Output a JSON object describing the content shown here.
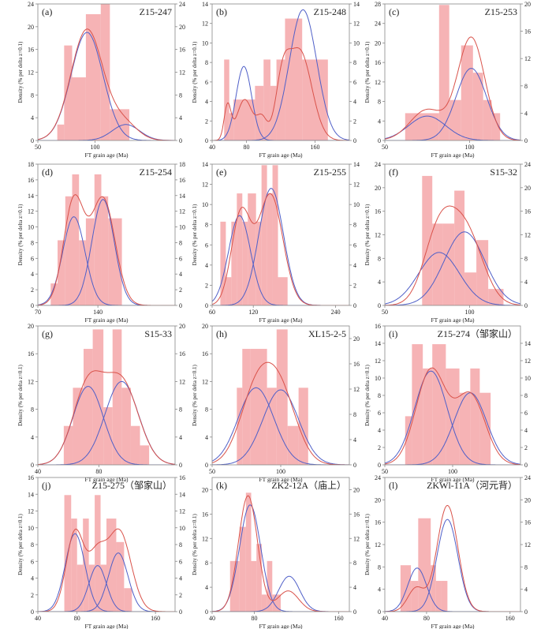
{
  "figure": {
    "title": "FT grain age histograms with decomposed peak components",
    "colors": {
      "bar": "#f4a6a8",
      "bar_opacity": "0.85",
      "frame": "#888888",
      "pdp_curve": "#d9524a",
      "component_curve": "#4f5fc8",
      "text": "#222222"
    }
  },
  "chart_data": [
    {
      "type": "bar",
      "panel": "(a)",
      "sample": "Z15-247",
      "xlabel": "FT grain age (Ma)",
      "ylabel": "Density (% per delta z=0.1)",
      "xlim": [
        50,
        170
      ],
      "xticks": [
        50,
        100
      ],
      "ylim": [
        0,
        24
      ],
      "yticks": [
        0,
        4,
        8,
        12,
        16,
        20,
        24
      ],
      "ylim_right": [
        0,
        24
      ],
      "yticks_right": [
        0,
        4,
        8,
        12,
        16,
        20,
        24
      ],
      "bins": [
        [
          67,
          73,
          2.8
        ],
        [
          73,
          80,
          16.7
        ],
        [
          80,
          92,
          11.1
        ],
        [
          92,
          105,
          22.2
        ],
        [
          105,
          113,
          24.8
        ],
        [
          113,
          130,
          5.5
        ]
      ],
      "pdp": {
        "components": [
          [
            93,
            14,
            19.5
          ],
          [
            125,
            12,
            3
          ]
        ]
      },
      "components": [
        [
          93,
          14,
          19
        ],
        [
          127,
          12,
          2.8
        ]
      ]
    },
    {
      "type": "bar",
      "panel": "(b)",
      "sample": "Z15-248",
      "xlabel": "FT grain age (Ma)",
      "ylabel": "Density (% per delta z=0.1)",
      "xlim": [
        40,
        200
      ],
      "xticks": [
        40,
        80,
        160
      ],
      "ylim": [
        0,
        14
      ],
      "yticks": [
        0,
        2,
        4,
        6,
        8,
        10,
        12,
        14
      ],
      "ylim_right": [
        0,
        14
      ],
      "yticks_right": [
        0,
        2,
        4,
        6,
        8,
        10,
        12,
        14
      ],
      "bins": [
        [
          54,
          60,
          8.3
        ],
        [
          60,
          65,
          2.8
        ],
        [
          65,
          90,
          4.2
        ],
        [
          90,
          100,
          5.6
        ],
        [
          100,
          108,
          8.3
        ],
        [
          108,
          115,
          5.6
        ],
        [
          115,
          125,
          8.3
        ],
        [
          125,
          145,
          12.5
        ],
        [
          145,
          160,
          8.3
        ],
        [
          160,
          175,
          8.3
        ]
      ],
      "pdp": {
        "components": [
          [
            58,
            4,
            3.5
          ],
          [
            78,
            9,
            4.2
          ],
          [
            98,
            6,
            2.2
          ],
          [
            122,
            8,
            5
          ],
          [
            142,
            14,
            9.2
          ]
        ]
      },
      "components": [
        [
          77,
          9,
          7.6
        ],
        [
          146,
          16,
          13.4
        ]
      ]
    },
    {
      "type": "bar",
      "panel": "(c)",
      "sample": "Z15-253",
      "xlabel": "FT grain age (Ma)",
      "ylabel": "Density (% per delta z=0.1)",
      "xlim": [
        50,
        130
      ],
      "xticks": [
        50,
        100
      ],
      "ylim": [
        0,
        28
      ],
      "yticks": [
        0,
        4,
        8,
        12,
        16,
        20,
        24,
        28
      ],
      "ylim_right": [
        0,
        20
      ],
      "yticks_right": [
        0,
        4,
        8,
        12,
        16,
        20
      ],
      "bins": [
        [
          62,
          82,
          5.6
        ],
        [
          82,
          88,
          27.8
        ],
        [
          88,
          95,
          8.3
        ],
        [
          95,
          102,
          19.5
        ],
        [
          102,
          108,
          13.9
        ],
        [
          108,
          113,
          8.3
        ],
        [
          113,
          118,
          5.6
        ]
      ],
      "pdp": {
        "components": [
          [
            75,
            10,
            4.5
          ],
          [
            101,
            8,
            15
          ]
        ]
      },
      "components": [
        [
          75,
          11,
          5
        ],
        [
          101,
          9,
          14.8
        ]
      ]
    },
    {
      "type": "bar",
      "panel": "(d)",
      "sample": "Z15-254",
      "xlabel": "FT grain age (Ma)",
      "ylabel": "Density (% per delta z=0.1)",
      "xlim": [
        70,
        230
      ],
      "xticks": [
        70,
        140
      ],
      "ylim": [
        0,
        18
      ],
      "yticks": [
        0,
        2,
        4,
        6,
        8,
        10,
        12,
        14,
        16,
        18
      ],
      "ylim_right": [
        0,
        18
      ],
      "yticks_right": [
        0,
        2,
        4,
        6,
        8,
        10,
        12,
        14,
        16,
        18
      ],
      "bins": [
        [
          85,
          93,
          2.8
        ],
        [
          93,
          102,
          8.3
        ],
        [
          102,
          110,
          13.9
        ],
        [
          110,
          118,
          16.7
        ],
        [
          118,
          126,
          8.3
        ],
        [
          126,
          136,
          11.1
        ],
        [
          136,
          144,
          16.7
        ],
        [
          144,
          152,
          13.9
        ],
        [
          152,
          168,
          11.1
        ]
      ],
      "pdp": {
        "components": [
          [
            112,
            12,
            13.3
          ],
          [
            146,
            14,
            13.6
          ]
        ]
      },
      "components": [
        [
          112,
          13,
          11.3
        ],
        [
          146,
          13,
          13.5
        ]
      ]
    },
    {
      "type": "bar",
      "panel": "(e)",
      "sample": "Z15-255",
      "xlabel": "FT grain age (Ma)",
      "ylabel": "Density (% per delta z=0.1)",
      "xlim": [
        60,
        260
      ],
      "xticks": [
        60,
        120,
        240
      ],
      "ylim": [
        0,
        14
      ],
      "yticks": [
        0,
        2,
        4,
        6,
        8,
        10,
        12,
        14
      ],
      "ylim_right": [
        0,
        14
      ],
      "yticks_right": [
        0,
        2,
        4,
        6,
        8,
        10,
        12,
        14
      ],
      "bins": [
        [
          72,
          80,
          8.3
        ],
        [
          80,
          88,
          2.8
        ],
        [
          88,
          96,
          8.3
        ],
        [
          96,
          104,
          11.1
        ],
        [
          104,
          112,
          8.3
        ],
        [
          112,
          124,
          11.1
        ],
        [
          124,
          132,
          8.3
        ],
        [
          132,
          140,
          13.9
        ],
        [
          140,
          148,
          11.1
        ],
        [
          148,
          156,
          13.9
        ],
        [
          156,
          170,
          2.8
        ]
      ],
      "pdp": {
        "components": [
          [
            102,
            14,
            9
          ],
          [
            145,
            18,
            11
          ]
        ]
      },
      "components": [
        [
          100,
          16,
          8.9
        ],
        [
          146,
          18,
          11.6
        ]
      ]
    },
    {
      "type": "bar",
      "panel": "(f)",
      "sample": "S15-32",
      "xlabel": "FT grain age (Ma)",
      "ylabel": "Density (% per delta z=0.1)",
      "xlim": [
        50,
        130
      ],
      "xticks": [
        50,
        100
      ],
      "ylim": [
        0,
        24
      ],
      "yticks": [
        0,
        4,
        8,
        12,
        16,
        20,
        24
      ],
      "ylim_right": [
        0,
        24
      ],
      "yticks_right": [
        0,
        4,
        8,
        12,
        16,
        20,
        24
      ],
      "bins": [
        [
          72,
          78,
          22
        ],
        [
          78,
          84,
          13.9
        ],
        [
          84,
          91,
          13.9
        ],
        [
          91,
          97,
          19.5
        ],
        [
          97,
          104,
          5.6
        ],
        [
          104,
          111,
          11.1
        ],
        [
          111,
          120,
          2.8
        ]
      ],
      "pdp": {
        "components": [
          [
            82,
            9,
            12
          ],
          [
            98,
            10,
            12
          ]
        ]
      },
      "components": [
        [
          82,
          12,
          9
        ],
        [
          97,
          12,
          12.5
        ]
      ]
    },
    {
      "type": "bar",
      "panel": "(g)",
      "sample": "S15-33",
      "xlabel": "FT grain age (Ma)",
      "ylabel": "Density (% per delta z=0.1)",
      "xlim": [
        40,
        130
      ],
      "xticks": [
        40,
        80
      ],
      "ylim": [
        0,
        20
      ],
      "yticks": [
        0,
        4,
        8,
        12,
        16,
        20
      ],
      "ylim_right": [
        0,
        20
      ],
      "yticks_right": [
        0,
        4,
        8,
        12,
        16,
        20
      ],
      "bins": [
        [
          57,
          63,
          5.6
        ],
        [
          63,
          70,
          11.1
        ],
        [
          70,
          76,
          16.7
        ],
        [
          76,
          83,
          19.5
        ],
        [
          83,
          89,
          8.3
        ],
        [
          89,
          95,
          19.5
        ],
        [
          95,
          101,
          11.1
        ],
        [
          101,
          107,
          5.6
        ],
        [
          107,
          113,
          2.8
        ]
      ],
      "pdp": {
        "components": [
          [
            73,
            10,
            11.3
          ],
          [
            95,
            11,
            11.8
          ]
        ]
      },
      "components": [
        [
          73,
          10,
          11.3
        ],
        [
          95,
          11,
          12
        ]
      ]
    },
    {
      "type": "bar",
      "panel": "(h)",
      "sample": "XL15-2-5",
      "xlabel": "FT grain age (Ma)",
      "ylabel": "Density (% per delta z=0.1)",
      "xlim": [
        50,
        150
      ],
      "xticks": [
        50,
        100
      ],
      "ylim": [
        0,
        20
      ],
      "yticks": [
        0,
        4,
        8,
        12,
        16,
        20
      ],
      "ylim_right": [
        0,
        22
      ],
      "yticks_right": [
        0,
        4,
        8,
        12,
        16,
        20
      ],
      "bins": [
        [
          68,
          72,
          11.1
        ],
        [
          72,
          78,
          16.7
        ],
        [
          78,
          90,
          16.7
        ],
        [
          90,
          97,
          11.1
        ],
        [
          97,
          105,
          19.5
        ],
        [
          105,
          113,
          5.6
        ],
        [
          113,
          120,
          11.1
        ]
      ],
      "pdp": {
        "components": [
          [
            82,
            12,
            11
          ],
          [
            100,
            12,
            10.5
          ]
        ]
      },
      "components": [
        [
          82,
          13,
          11.1
        ],
        [
          100,
          13,
          10.8
        ]
      ]
    },
    {
      "type": "bar",
      "panel": "(i)",
      "sample": "Z15-274（邹家山）",
      "xlabel": "FT grain age (Ma)",
      "ylabel": "Density (% per delta z=0.1)",
      "xlim": [
        50,
        150
      ],
      "xticks": [
        50,
        100
      ],
      "ylim": [
        0,
        16
      ],
      "yticks": [
        0,
        2,
        4,
        6,
        8,
        10,
        12,
        14,
        16
      ],
      "ylim_right": [
        0,
        16
      ],
      "yticks_right": [
        0,
        2,
        4,
        6,
        8,
        10,
        12,
        14
      ],
      "bins": [
        [
          65,
          70,
          5.6
        ],
        [
          70,
          78,
          13.9
        ],
        [
          78,
          85,
          11.1
        ],
        [
          85,
          95,
          13.9
        ],
        [
          95,
          105,
          11.1
        ],
        [
          105,
          113,
          8.3
        ],
        [
          113,
          120,
          11.1
        ],
        [
          120,
          128,
          8.3
        ]
      ],
      "pdp": {
        "components": [
          [
            84,
            11,
            10.9
          ],
          [
            113,
            11,
            8
          ]
        ]
      },
      "components": [
        [
          84,
          12,
          10.8
        ],
        [
          113,
          12,
          8.3
        ]
      ]
    },
    {
      "type": "bar",
      "panel": "(j)",
      "sample": "Z15-275（邹家山）",
      "xlabel": "FT grain age (Ma)",
      "ylabel": "Density (% per delta z=0.1)",
      "xlim": [
        40,
        180
      ],
      "xticks": [
        40,
        80,
        160
      ],
      "ylim": [
        0,
        16
      ],
      "yticks": [
        0,
        2,
        4,
        6,
        8,
        10,
        12,
        14,
        16
      ],
      "ylim_right": [
        0,
        16
      ],
      "yticks_right": [
        0,
        2,
        4,
        6,
        8,
        10,
        12,
        14,
        16
      ],
      "bins": [
        [
          67,
          74,
          13.9
        ],
        [
          74,
          80,
          11.1
        ],
        [
          80,
          86,
          5.6
        ],
        [
          86,
          92,
          11.1
        ],
        [
          92,
          98,
          5.6
        ],
        [
          98,
          104,
          13.9
        ],
        [
          104,
          110,
          5.6
        ],
        [
          110,
          120,
          11.1
        ],
        [
          120,
          128,
          8.3
        ],
        [
          128,
          136,
          2.8
        ]
      ],
      "pdp": {
        "components": [
          [
            78,
            9,
            9.5
          ],
          [
            100,
            9,
            6
          ],
          [
            123,
            12,
            9.6
          ]
        ]
      },
      "components": [
        [
          78,
          10,
          9.3
        ],
        [
          101,
          9,
          5.5
        ],
        [
          122,
          10,
          7
        ]
      ]
    },
    {
      "type": "bar",
      "panel": "(k)",
      "sample": "ZK2-12A（庙上）",
      "xlabel": "FT grain age (Ma)",
      "ylabel": "Density (% per delta z=0.1)",
      "xlim": [
        40,
        170
      ],
      "xticks": [
        40,
        80,
        160
      ],
      "ylim": [
        0,
        22
      ],
      "yticks": [
        0,
        4,
        8,
        12,
        16,
        20
      ],
      "ylim_right": [
        0,
        22
      ],
      "yticks_right": [
        0,
        4,
        8,
        12,
        16,
        20
      ],
      "bins": [
        [
          57,
          66,
          8.3
        ],
        [
          66,
          72,
          13.9
        ],
        [
          72,
          77,
          19.5
        ],
        [
          77,
          82,
          8.3
        ],
        [
          82,
          87,
          11.1
        ],
        [
          87,
          92,
          2.8
        ],
        [
          92,
          97,
          8.3
        ],
        [
          97,
          105,
          2.8
        ]
      ],
      "pdp": {
        "components": [
          [
            74,
            9,
            19
          ],
          [
            112,
            10,
            3.4
          ]
        ]
      },
      "components": [
        [
          76,
          10,
          17.5
        ],
        [
          113,
          10,
          5.8
        ]
      ]
    },
    {
      "type": "bar",
      "panel": "(l)",
      "sample": "ZKWl-11A（河元背）",
      "xlabel": "FT grain age (Ma)",
      "ylabel": "Density (% per delta z=0.1)",
      "xlim": [
        40,
        170
      ],
      "xticks": [
        40,
        80,
        160
      ],
      "ylim": [
        0,
        24
      ],
      "yticks": [
        0,
        4,
        8,
        12,
        16,
        20,
        24
      ],
      "ylim_right": [
        0,
        24
      ],
      "yticks_right": [
        0,
        4,
        8,
        12,
        16,
        20,
        24
      ],
      "bins": [
        [
          55,
          65,
          8.3
        ],
        [
          65,
          72,
          5.5
        ],
        [
          72,
          84,
          16.7
        ],
        [
          84,
          89,
          8.3
        ],
        [
          89,
          94,
          5.5
        ],
        [
          94,
          100,
          5.5
        ]
      ],
      "pdp": {
        "components": [
          [
            70,
            8,
            4.2
          ],
          [
            100,
            10,
            19
          ]
        ]
      },
      "components": [
        [
          71,
          9,
          7.8
        ],
        [
          100,
          10,
          16.5
        ]
      ]
    }
  ]
}
